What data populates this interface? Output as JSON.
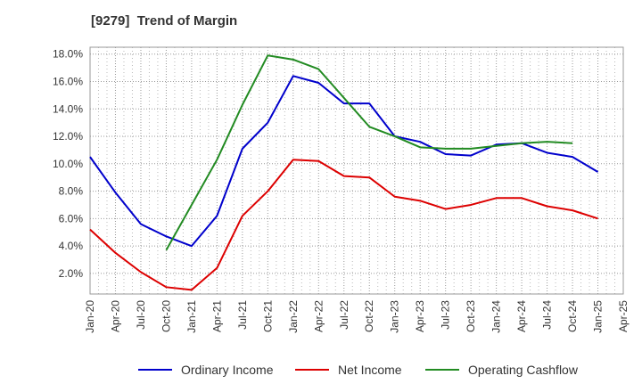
{
  "title": "[9279]  Trend of Margin",
  "chart_data": {
    "type": "line",
    "title": "[9279]  Trend of Margin",
    "xlabel": "",
    "ylabel": "",
    "x": [
      "Jan-20",
      "Apr-20",
      "Jul-20",
      "Oct-20",
      "Jan-21",
      "Apr-21",
      "Jul-21",
      "Oct-21",
      "Jan-22",
      "Apr-22",
      "Jul-22",
      "Oct-22",
      "Jan-23",
      "Apr-23",
      "Jul-23",
      "Oct-23",
      "Jan-24",
      "Apr-24",
      "Jul-24",
      "Oct-24",
      "Jan-25",
      "Apr-25"
    ],
    "x_ticks": [
      "Jan-20",
      "Apr-20",
      "Jul-20",
      "Oct-20",
      "Jan-21",
      "Apr-21",
      "Jul-21",
      "Oct-21",
      "Jan-22",
      "Apr-22",
      "Jul-22",
      "Oct-22",
      "Jan-23",
      "Apr-23",
      "Jul-23",
      "Oct-23",
      "Jan-24",
      "Apr-24",
      "Jul-24",
      "Oct-24",
      "Jan-25",
      "Apr-25"
    ],
    "y_ticks": [
      "2.0%",
      "4.0%",
      "6.0%",
      "8.0%",
      "10.0%",
      "12.0%",
      "14.0%",
      "16.0%",
      "18.0%"
    ],
    "y_tick_values": [
      2,
      4,
      6,
      8,
      10,
      12,
      14,
      16,
      18
    ],
    "ylim": [
      0.5,
      18.5
    ],
    "grid": true,
    "legend_position": "bottom",
    "series": [
      {
        "name": "Ordinary Income",
        "color": "#0000cc",
        "values": [
          10.5,
          7.9,
          5.6,
          4.7,
          4.0,
          6.2,
          11.1,
          13.0,
          16.4,
          15.9,
          14.4,
          14.4,
          12.0,
          11.6,
          10.7,
          10.6,
          11.4,
          11.5,
          10.8,
          10.5,
          9.4,
          null
        ]
      },
      {
        "name": "Net Income",
        "color": "#dd0000",
        "values": [
          5.2,
          3.5,
          2.1,
          1.0,
          0.8,
          2.4,
          6.2,
          8.0,
          10.3,
          10.2,
          9.1,
          9.0,
          7.6,
          7.3,
          6.7,
          7.0,
          7.5,
          7.5,
          6.9,
          6.6,
          6.0,
          null
        ]
      },
      {
        "name": "Operating Cashflow",
        "color": "#228b22",
        "values": [
          null,
          null,
          null,
          3.7,
          7.0,
          10.3,
          14.3,
          17.9,
          17.6,
          16.9,
          14.8,
          12.7,
          12.0,
          11.2,
          11.1,
          11.1,
          11.3,
          11.5,
          11.6,
          11.5,
          null,
          null
        ]
      }
    ]
  }
}
